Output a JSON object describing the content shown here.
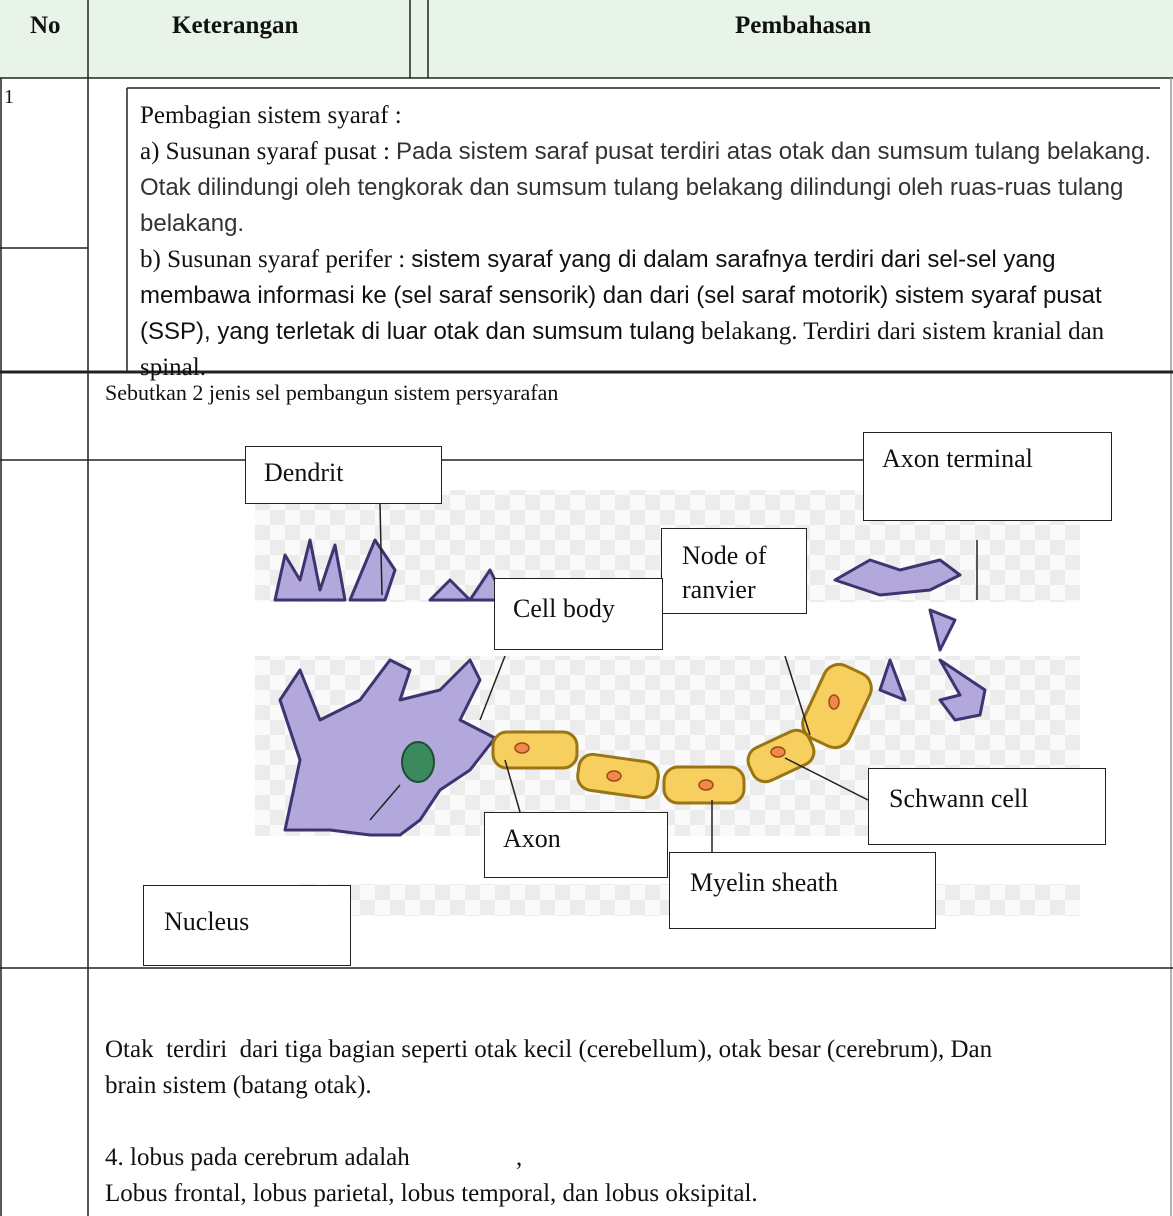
{
  "header": {
    "no": "No",
    "keterangan": "Keterangan",
    "pembahasan": "Pembahasan"
  },
  "rows": [
    {
      "number": "1",
      "title": "Pembagian sistem syaraf :",
      "items": [
        {
          "label": "a) Susunan syaraf pusat :",
          "text": "Pada sistem saraf pusat terdiri atas otak dan sumsum tulang belakang. Otak dilindungi oleh tengkorak dan sumsum tulang belakang dilindungi oleh ruas-ruas tulang belakang."
        },
        {
          "label": "b) Susunan syaraf perifer :",
          "text": "sistem syaraf yang di dalam sarafnya terdiri dari sel-sel yang membawa informasi ke (sel saraf sensorik) dan dari (sel saraf motorik) sistem syaraf pusat (SSP), yang terletak di luar otak dan sumsum tulang",
          "tail": "belakang. Terdiri dari sistem kranial dan spinal."
        }
      ]
    },
    {
      "question": "Sebutkan 2 jenis sel pembangun sistem persyarafan",
      "diagram_labels": {
        "dendrit": "Dendrit",
        "axon_terminal": "Axon terminal",
        "node": "Node of ranvier",
        "cell_body": "Cell body",
        "schwann": "Schwann cell",
        "axon": "Axon",
        "myelin": "Myelin sheath",
        "nucleus": "Nucleus"
      }
    },
    {
      "paragraphs": [
        "Otak  terdiri  dari tiga bagian seperti otak kecil (cerebellum), otak besar (cerebrum), Dan brain sistem (batang otak).",
        "4. lobus pada cerebrum adalah                 ,",
        "Lobus frontal, lobus parietal, lobus temporal, dan lobus oksipital."
      ]
    }
  ]
}
